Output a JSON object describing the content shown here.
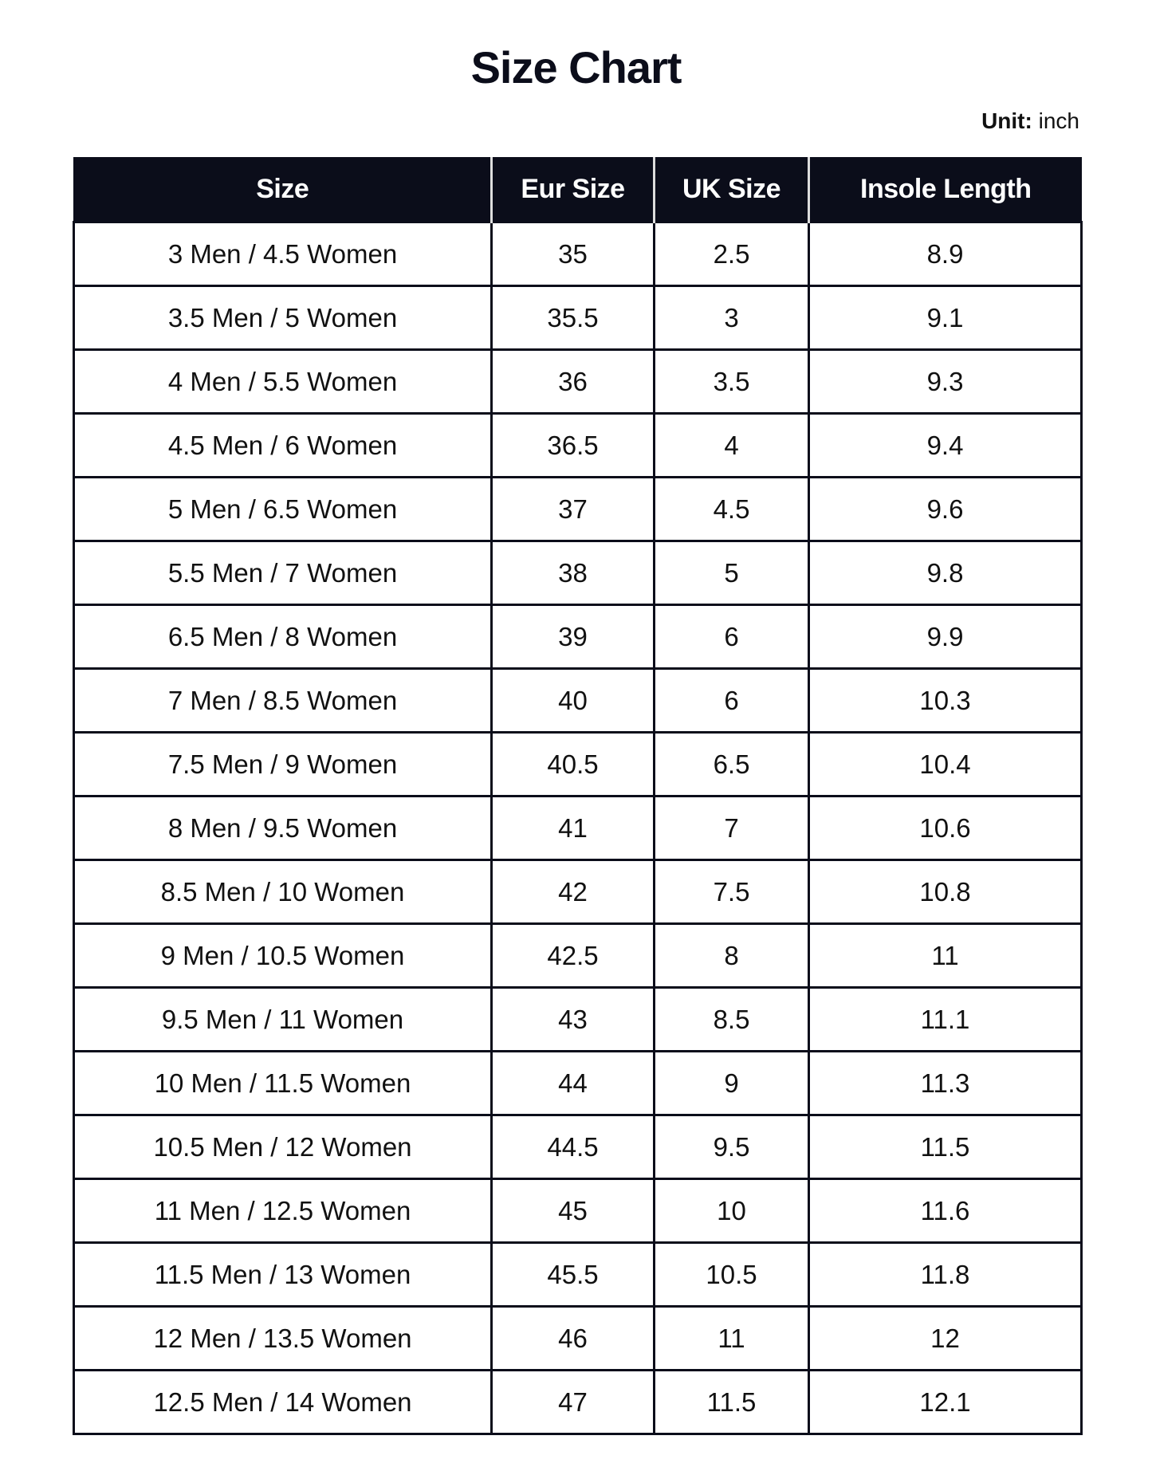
{
  "title": "Size Chart",
  "unit": {
    "label": "Unit:",
    "value": "inch"
  },
  "colors": {
    "header_bg": "#0b0d1a",
    "header_text": "#ffffff"
  },
  "table": {
    "headers": [
      "Size",
      "Eur Size",
      "UK Size",
      "Insole Length"
    ],
    "rows": [
      [
        "3 Men / 4.5 Women",
        "35",
        "2.5",
        "8.9"
      ],
      [
        "3.5 Men / 5 Women",
        "35.5",
        "3",
        "9.1"
      ],
      [
        "4 Men / 5.5 Women",
        "36",
        "3.5",
        "9.3"
      ],
      [
        "4.5 Men / 6 Women",
        "36.5",
        "4",
        "9.4"
      ],
      [
        "5 Men / 6.5 Women",
        "37",
        "4.5",
        "9.6"
      ],
      [
        "5.5 Men / 7 Women",
        "38",
        "5",
        "9.8"
      ],
      [
        "6.5 Men / 8 Women",
        "39",
        "6",
        "9.9"
      ],
      [
        "7 Men / 8.5 Women",
        "40",
        "6",
        "10.3"
      ],
      [
        "7.5 Men / 9 Women",
        "40.5",
        "6.5",
        "10.4"
      ],
      [
        "8 Men / 9.5 Women",
        "41",
        "7",
        "10.6"
      ],
      [
        "8.5 Men / 10 Women",
        "42",
        "7.5",
        "10.8"
      ],
      [
        "9 Men / 10.5 Women",
        "42.5",
        "8",
        "11"
      ],
      [
        "9.5 Men / 11 Women",
        "43",
        "8.5",
        "11.1"
      ],
      [
        "10 Men / 11.5 Women",
        "44",
        "9",
        "11.3"
      ],
      [
        "10.5 Men / 12 Women",
        "44.5",
        "9.5",
        "11.5"
      ],
      [
        "11 Men / 12.5 Women",
        "45",
        "10",
        "11.6"
      ],
      [
        "11.5 Men / 13 Women",
        "45.5",
        "10.5",
        "11.8"
      ],
      [
        "12 Men / 13.5 Women",
        "46",
        "11",
        "12"
      ],
      [
        "12.5 Men / 14 Women",
        "47",
        "11.5",
        "12.1"
      ]
    ]
  }
}
